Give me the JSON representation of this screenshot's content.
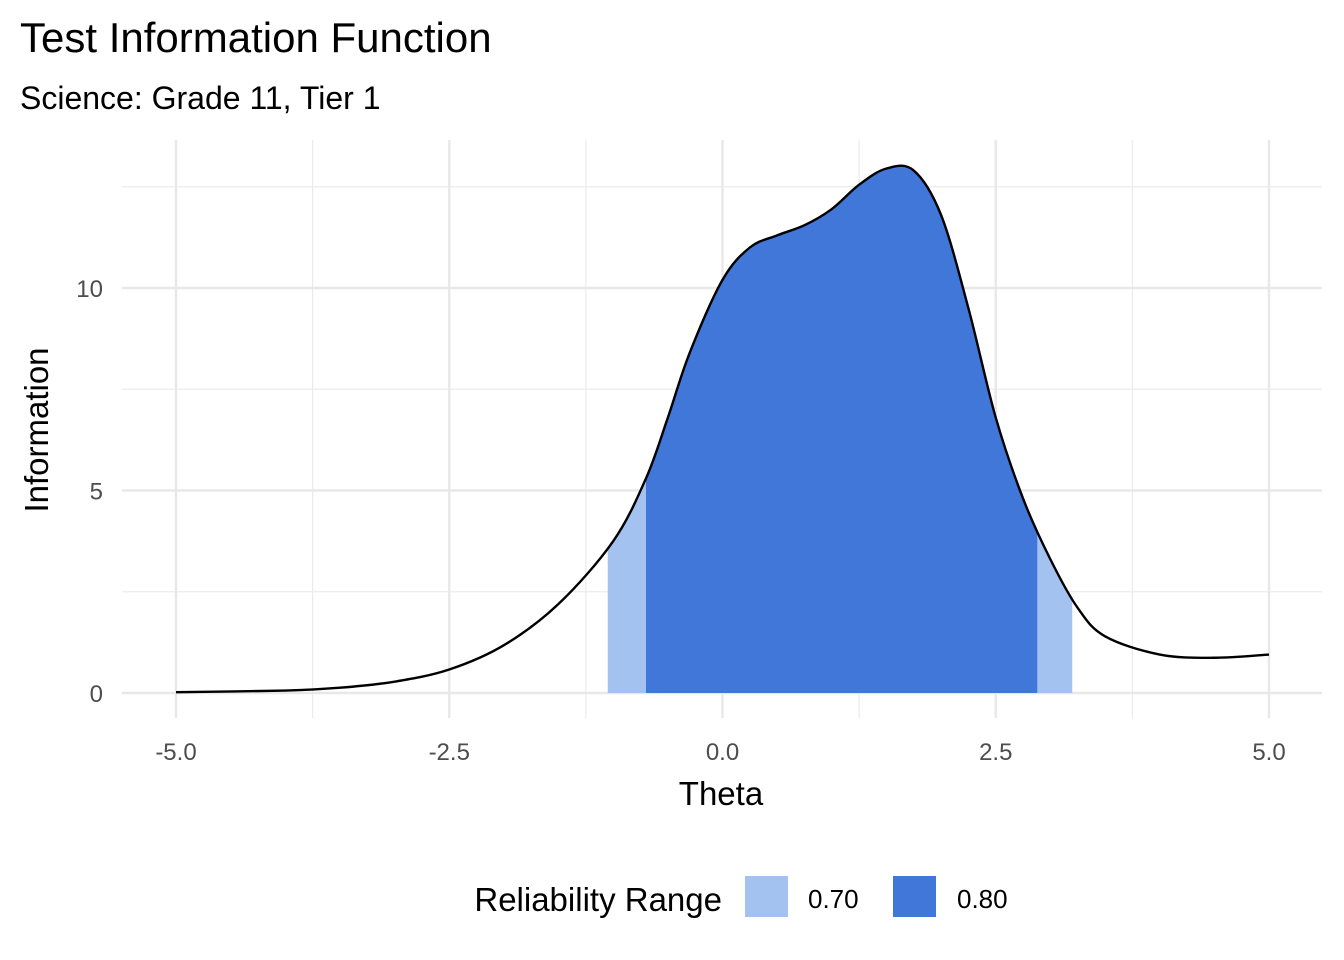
{
  "chart_data": {
    "type": "area",
    "title": "Test Information Function",
    "subtitle": "Science: Grade 11, Tier 1",
    "xlabel": "Theta",
    "ylabel": "Information",
    "xlim": [
      -5.0,
      5.0
    ],
    "ylim": [
      0,
      13
    ],
    "x_ticks": [
      "-5.0",
      "-2.5",
      "0.0",
      "2.5",
      "5.0"
    ],
    "x_tick_values": [
      -5.0,
      -2.5,
      0.0,
      2.5,
      5.0
    ],
    "y_ticks": [
      "0",
      "5",
      "10"
    ],
    "y_tick_values": [
      0,
      5,
      10
    ],
    "grid": true,
    "legend": {
      "title": "Reliability Range",
      "position": "bottom",
      "entries": [
        {
          "label": "0.70",
          "color": "#a4c2ef"
        },
        {
          "label": "0.80",
          "color": "#4177d8"
        }
      ]
    },
    "curve": {
      "x": [
        -5.0,
        -4.0,
        -3.5,
        -3.0,
        -2.5,
        -2.0,
        -1.5,
        -1.0,
        -0.7,
        -0.5,
        -0.3,
        0.0,
        0.25,
        0.5,
        0.75,
        1.0,
        1.25,
        1.5,
        1.75,
        2.0,
        2.25,
        2.5,
        2.75,
        3.0,
        3.25,
        3.5,
        4.0,
        4.5,
        5.0
      ],
      "y": [
        0.02,
        0.06,
        0.13,
        0.28,
        0.58,
        1.18,
        2.2,
        3.75,
        5.3,
        6.8,
        8.4,
        10.2,
        11.0,
        11.3,
        11.55,
        11.95,
        12.55,
        12.95,
        12.9,
        11.8,
        9.5,
        6.8,
        4.8,
        3.3,
        2.1,
        1.4,
        0.95,
        0.87,
        0.95
      ]
    },
    "bands": [
      {
        "reliability": "0.70",
        "x_range": [
          -1.05,
          3.2
        ]
      },
      {
        "reliability": "0.80",
        "x_range": [
          -0.7,
          2.88
        ]
      }
    ]
  }
}
